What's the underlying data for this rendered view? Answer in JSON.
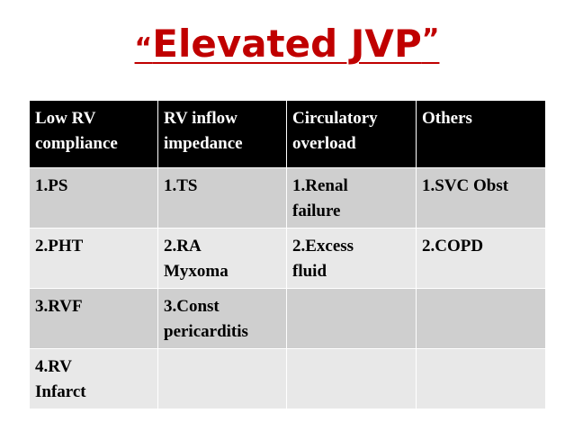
{
  "slide": {
    "title_open_quote": "“",
    "title": "Elevated JVP",
    "title_close_quote": "”"
  },
  "table": {
    "headers": [
      [
        "Low RV",
        "compliance"
      ],
      [
        "RV inflow",
        "impedance"
      ],
      [
        "Circulatory",
        "overload"
      ],
      [
        "Others",
        ""
      ]
    ],
    "rows": [
      [
        [
          "1.PS",
          ""
        ],
        [
          "1.TS",
          ""
        ],
        [
          "1.Renal",
          "failure"
        ],
        [
          "1.SVC Obst",
          ""
        ]
      ],
      [
        [
          "2.PHT",
          ""
        ],
        [
          "2.RA",
          "Myxoma"
        ],
        [
          "2.Excess",
          "fluid"
        ],
        [
          "2.COPD",
          ""
        ]
      ],
      [
        [
          "3.RVF",
          ""
        ],
        [
          "3.Const",
          "pericarditis"
        ],
        [
          "",
          ""
        ],
        [
          "",
          ""
        ]
      ],
      [
        [
          "4.RV",
          "Infarct"
        ],
        [
          "",
          ""
        ],
        [
          "",
          ""
        ],
        [
          "",
          ""
        ]
      ]
    ]
  },
  "colors": {
    "title": "#c00000",
    "header_background": "#000000",
    "header_text": "#ffffff",
    "row_dark": "#cfcfcf",
    "row_light": "#e8e8e8"
  }
}
